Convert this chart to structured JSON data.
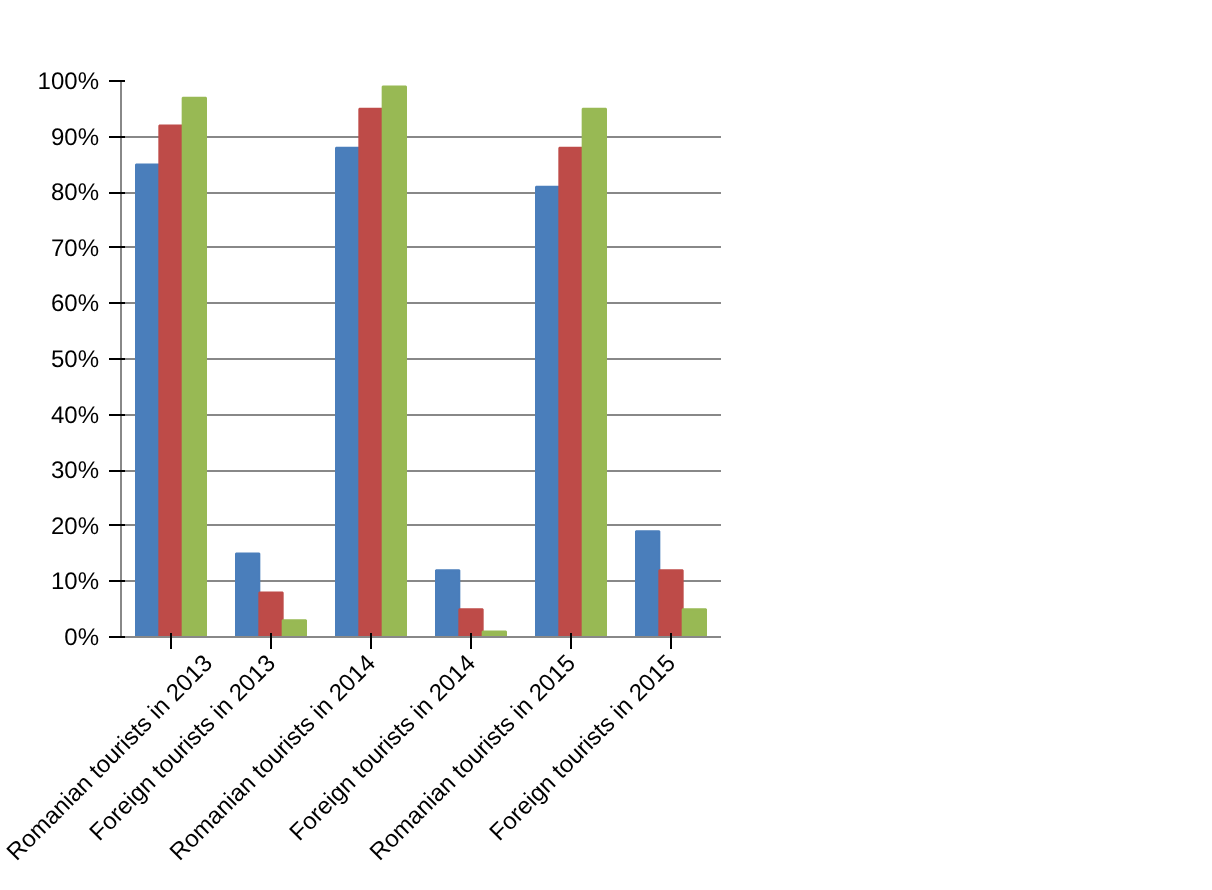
{
  "chart_data": {
    "type": "bar",
    "categories": [
      "Romanian tourists in 2013",
      "Foreign tourists in 2013",
      "Romanian tourists in 2014",
      "Foreign tourists in 2014",
      "Romanian tourists in 2015",
      "Foreign tourists in 2015"
    ],
    "series": [
      {
        "color": "#4a7ebb",
        "values": [
          85,
          15,
          88,
          12,
          81,
          19
        ]
      },
      {
        "color": "#be4b48",
        "values": [
          92,
          8,
          95,
          5,
          88,
          12
        ]
      },
      {
        "color": "#98b954",
        "values": [
          97,
          3,
          99,
          1,
          95,
          5
        ]
      }
    ],
    "ylim": [
      0,
      100
    ],
    "yticks": [
      {
        "value": 0,
        "label": "0%"
      },
      {
        "value": 10,
        "label": "10%"
      },
      {
        "value": 20,
        "label": "20%"
      },
      {
        "value": 30,
        "label": "30%"
      },
      {
        "value": 40,
        "label": "40%"
      },
      {
        "value": 50,
        "label": "50%"
      },
      {
        "value": 60,
        "label": "60%"
      },
      {
        "value": 70,
        "label": "70%"
      },
      {
        "value": 80,
        "label": "80%"
      },
      {
        "value": 90,
        "label": "90%"
      },
      {
        "value": 100,
        "label": "100%"
      }
    ],
    "grid": "y"
  }
}
